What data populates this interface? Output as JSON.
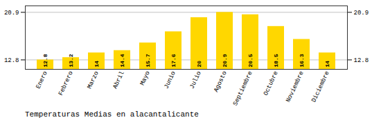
{
  "chart_data": {
    "type": "bar",
    "title": "Temperaturas Medias en alacantalicante",
    "categories": [
      "Enero",
      "Febrero",
      "Marzo",
      "Abril",
      "Mayo",
      "Junio",
      "Julio",
      "Agosto",
      "Septiembre",
      "Octubre",
      "Noviembre",
      "Diciembre"
    ],
    "values": [
      12.8,
      13.2,
      14.0,
      14.4,
      15.7,
      17.6,
      20.0,
      20.9,
      20.5,
      18.5,
      16.3,
      14.0
    ],
    "color": "#FFD700",
    "ylim": [
      11.2,
      22.0
    ],
    "yticks": [
      12.8,
      20.9
    ],
    "grid": true,
    "data_labels": true
  }
}
